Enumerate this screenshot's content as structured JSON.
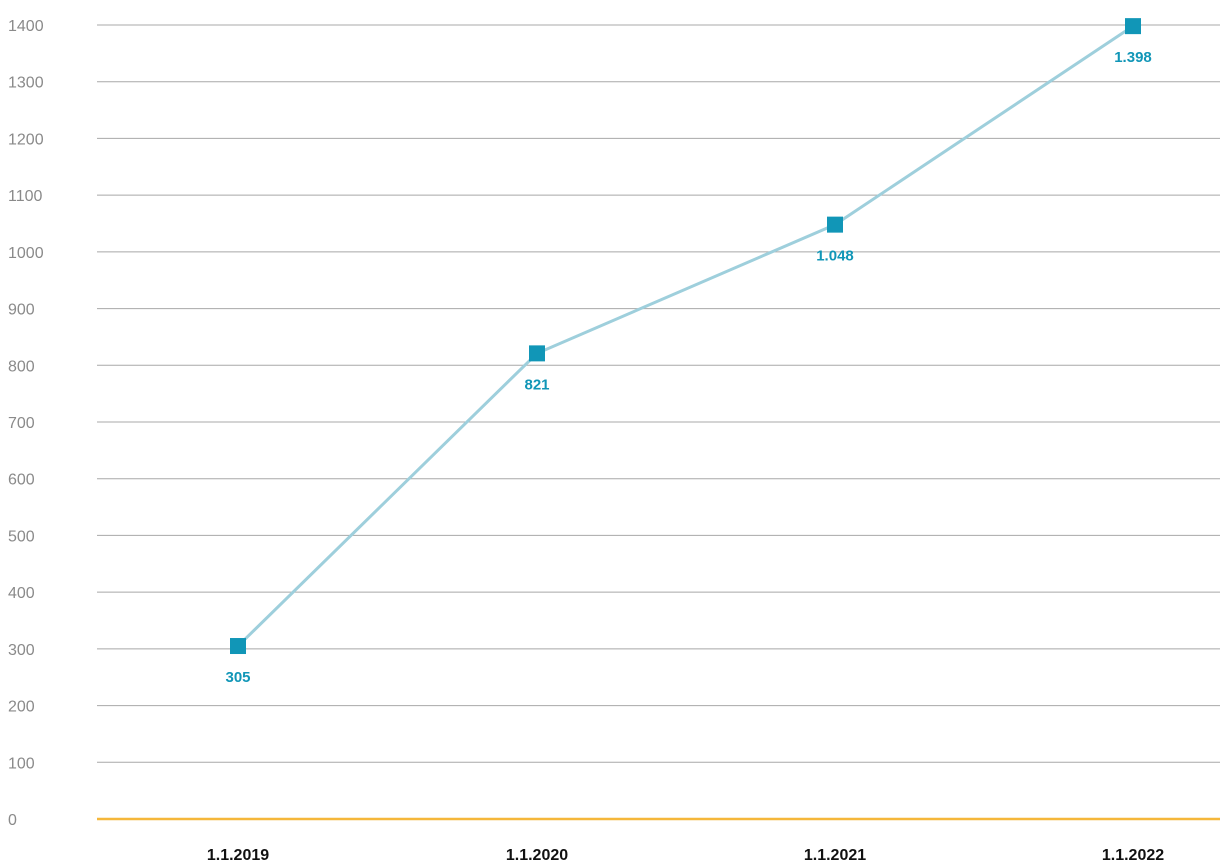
{
  "chart_data": {
    "type": "line",
    "title": "",
    "xlabel": "",
    "ylabel": "",
    "categories": [
      "1.1.2019",
      "1.1.2020",
      "1.1.2021",
      "1.1.2022"
    ],
    "series": [
      {
        "values": [
          305,
          821,
          1048,
          1398
        ],
        "data_labels": [
          "305",
          "821",
          "1.048",
          "1.398"
        ]
      }
    ],
    "y_ticks": [
      "0",
      "100",
      "200",
      "300",
      "400",
      "500",
      "600",
      "700",
      "800",
      "900",
      "1000",
      "1100",
      "1200",
      "1300",
      "1400"
    ],
    "ylim": [
      0,
      1400
    ],
    "grid": true,
    "legend": "none",
    "colors": {
      "line": "#9ecfdc",
      "marker": "#1196b7",
      "data_label": "#1196b7",
      "grid": "#a8a8a8",
      "baseline": "#f5b73b"
    }
  }
}
